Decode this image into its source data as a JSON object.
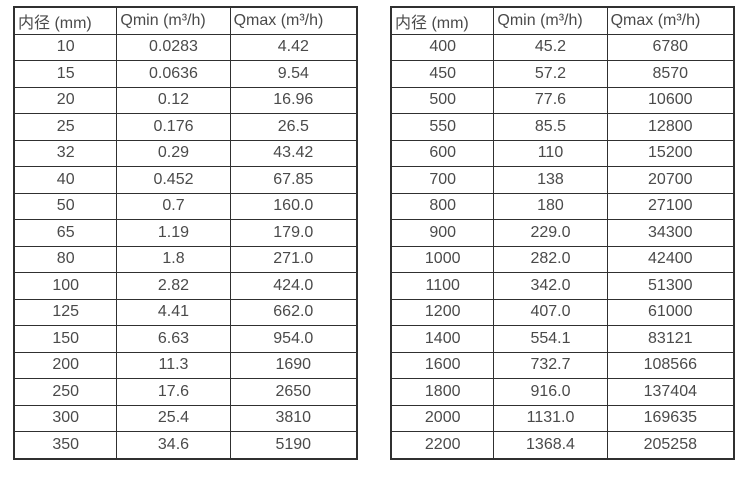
{
  "theme": {
    "background_color": "#ffffff",
    "border_color": "#303030",
    "text_color": "#4a4a4a"
  },
  "tables": [
    {
      "name": "flow-table-left",
      "headers": [
        "内径 (mm)",
        "Qmin (m³/h)",
        "Qmax (m³/h)"
      ],
      "rows": [
        [
          "10",
          "0.0283",
          "4.42"
        ],
        [
          "15",
          "0.0636",
          "9.54"
        ],
        [
          "20",
          "0.12",
          "16.96"
        ],
        [
          "25",
          "0.176",
          "26.5"
        ],
        [
          "32",
          "0.29",
          "43.42"
        ],
        [
          "40",
          "0.452",
          "67.85"
        ],
        [
          "50",
          "0.7",
          "160.0"
        ],
        [
          "65",
          "1.19",
          "179.0"
        ],
        [
          "80",
          "1.8",
          "271.0"
        ],
        [
          "100",
          "2.82",
          "424.0"
        ],
        [
          "125",
          "4.41",
          "662.0"
        ],
        [
          "150",
          "6.63",
          "954.0"
        ],
        [
          "200",
          "11.3",
          "1690"
        ],
        [
          "250",
          "17.6",
          "2650"
        ],
        [
          "300",
          "25.4",
          "3810"
        ],
        [
          "350",
          "34.6",
          "5190"
        ]
      ]
    },
    {
      "name": "flow-table-right",
      "headers": [
        "内径 (mm)",
        "Qmin (m³/h)",
        "Qmax (m³/h)"
      ],
      "rows": [
        [
          "400",
          "45.2",
          "6780"
        ],
        [
          "450",
          "57.2",
          "8570"
        ],
        [
          "500",
          "77.6",
          "10600"
        ],
        [
          "550",
          "85.5",
          "12800"
        ],
        [
          "600",
          "110",
          "15200"
        ],
        [
          "700",
          "138",
          "20700"
        ],
        [
          "800",
          "180",
          "27100"
        ],
        [
          "900",
          "229.0",
          "34300"
        ],
        [
          "1000",
          "282.0",
          "42400"
        ],
        [
          "1100",
          "342.0",
          "51300"
        ],
        [
          "1200",
          "407.0",
          "61000"
        ],
        [
          "1400",
          "554.1",
          "83121"
        ],
        [
          "1600",
          "732.7",
          "108566"
        ],
        [
          "1800",
          "916.0",
          "137404"
        ],
        [
          "2000",
          "1131.0",
          "169635"
        ],
        [
          "2200",
          "1368.4",
          "205258"
        ]
      ]
    }
  ]
}
